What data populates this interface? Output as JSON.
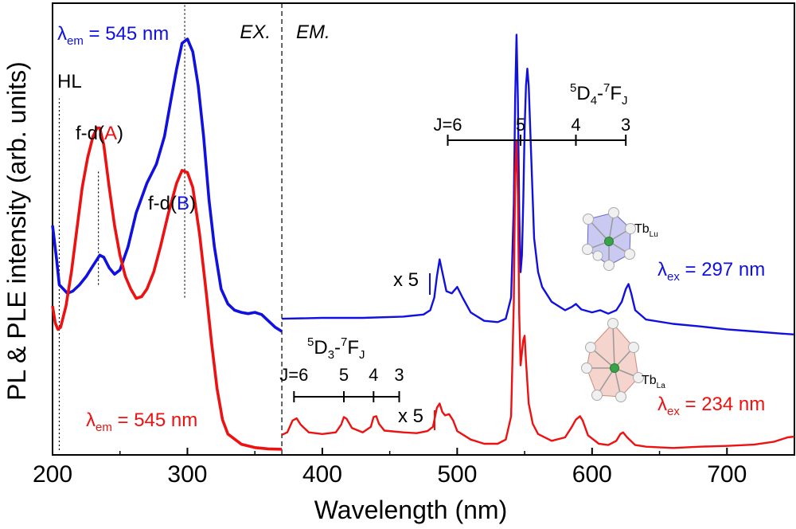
{
  "chart_data": {
    "type": "line",
    "title": "",
    "xlabel": "Wavelength (nm)",
    "ylabel": "PL & PLE intensity (arb. units)",
    "xlim": [
      200,
      750
    ],
    "ylim": [
      0,
      10
    ],
    "grid": false,
    "legend": "none",
    "x_ticks": [
      200,
      300,
      400,
      500,
      600,
      700
    ],
    "x_tick_labels": [
      "200",
      "300",
      "400",
      "500",
      "600",
      "700"
    ],
    "divider_x": 370,
    "colors": {
      "blue": "#1010e0",
      "red": "#ee1111",
      "tb_lu_poly": "#8888e0",
      "tb_la_poly": "#e8a090",
      "center_atom": "#3aa34a",
      "vertex_atom": "#f0f0f0"
    },
    "series": [
      {
        "color": "#1010e0",
        "segments": [
          [
            [
              200,
              5.3
            ],
            [
              203,
              4.5
            ],
            [
              205,
              3.9
            ],
            [
              208,
              3.8
            ],
            [
              211,
              3.7
            ],
            [
              215,
              3.75
            ],
            [
              220,
              3.9
            ],
            [
              225,
              4.1
            ],
            [
              229,
              4.3
            ],
            [
              232,
              4.45
            ],
            [
              235,
              4.6
            ],
            [
              238,
              4.55
            ],
            [
              242,
              4.3
            ],
            [
              246,
              4.15
            ],
            [
              250,
              4.25
            ],
            [
              256,
              4.8
            ],
            [
              262,
              5.6
            ],
            [
              270,
              6.3
            ],
            [
              277,
              6.75
            ],
            [
              283,
              7.4
            ],
            [
              288,
              8.3
            ],
            [
              292,
              9.0
            ],
            [
              296,
              9.6
            ],
            [
              300,
              9.7
            ],
            [
              304,
              9.4
            ],
            [
              308,
              8.6
            ],
            [
              312,
              7.4
            ],
            [
              316,
              5.9
            ],
            [
              320,
              4.8
            ],
            [
              325,
              3.8
            ],
            [
              330,
              3.45
            ],
            [
              335,
              3.3
            ],
            [
              340,
              3.25
            ],
            [
              345,
              3.22
            ],
            [
              350,
              3.25
            ],
            [
              355,
              3.2
            ],
            [
              360,
              3.05
            ],
            [
              365,
              2.9
            ],
            [
              370,
              2.8
            ]
          ],
          [
            [
              370,
              3.1
            ],
            [
              400,
              3.12
            ],
            [
              430,
              3.12
            ],
            [
              460,
              3.15
            ],
            [
              475,
              3.2
            ],
            [
              480,
              3.3
            ],
            [
              483,
              3.6
            ],
            [
              485,
              4.1
            ],
            [
              487,
              4.5
            ],
            [
              489,
              4.2
            ],
            [
              492,
              3.75
            ],
            [
              496,
              3.7
            ],
            [
              500,
              3.85
            ],
            [
              504,
              3.6
            ],
            [
              510,
              3.25
            ],
            [
              520,
              3.05
            ],
            [
              530,
              3.02
            ],
            [
              536,
              3.1
            ],
            [
              540,
              3.6
            ],
            [
              542,
              5.8
            ],
            [
              543,
              8.3
            ],
            [
              544,
              9.8
            ],
            [
              545,
              8.3
            ],
            [
              546,
              5.6
            ],
            [
              547,
              4.2
            ],
            [
              548,
              4.6
            ],
            [
              549,
              5.9
            ],
            [
              550,
              7.6
            ],
            [
              551,
              8.6
            ],
            [
              552,
              9.0
            ],
            [
              553,
              8.6
            ],
            [
              555,
              6.8
            ],
            [
              557,
              5.0
            ],
            [
              560,
              4.2
            ],
            [
              563,
              3.85
            ],
            [
              570,
              3.5
            ],
            [
              580,
              3.3
            ],
            [
              585,
              3.38
            ],
            [
              588,
              3.45
            ],
            [
              592,
              3.32
            ],
            [
              600,
              3.25
            ],
            [
              606,
              3.3
            ],
            [
              612,
              3.22
            ],
            [
              618,
              3.3
            ],
            [
              622,
              3.5
            ],
            [
              625,
              3.8
            ],
            [
              627,
              3.92
            ],
            [
              629,
              3.7
            ],
            [
              632,
              3.3
            ],
            [
              640,
              3.08
            ],
            [
              660,
              2.98
            ],
            [
              680,
              2.92
            ],
            [
              700,
              2.85
            ],
            [
              720,
              2.8
            ],
            [
              740,
              2.75
            ],
            [
              750,
              2.73
            ]
          ]
        ]
      },
      {
        "color": "#ee1111",
        "segments": [
          [
            [
              200,
              3.4
            ],
            [
              202,
              3.0
            ],
            [
              204,
              2.85
            ],
            [
              206,
              2.9
            ],
            [
              210,
              3.4
            ],
            [
              214,
              4.2
            ],
            [
              218,
              5.2
            ],
            [
              222,
              6.2
            ],
            [
              226,
              6.9
            ],
            [
              230,
              7.4
            ],
            [
              233,
              7.6
            ],
            [
              235,
              7.6
            ],
            [
              238,
              7.2
            ],
            [
              242,
              6.2
            ],
            [
              246,
              5.3
            ],
            [
              250,
              4.6
            ],
            [
              254,
              4.1
            ],
            [
              258,
              3.8
            ],
            [
              262,
              3.58
            ],
            [
              266,
              3.62
            ],
            [
              270,
              3.8
            ],
            [
              275,
              4.2
            ],
            [
              280,
              4.8
            ],
            [
              286,
              5.6
            ],
            [
              292,
              6.3
            ],
            [
              296,
              6.6
            ],
            [
              300,
              6.55
            ],
            [
              304,
              6.2
            ],
            [
              309,
              5.1
            ],
            [
              314,
              3.7
            ],
            [
              318,
              2.5
            ],
            [
              322,
              1.45
            ],
            [
              326,
              0.72
            ],
            [
              330,
              0.38
            ],
            [
              340,
              0.14
            ],
            [
              350,
              0.06
            ],
            [
              360,
              0.03
            ],
            [
              370,
              0.02
            ]
          ],
          [
            [
              370,
              0.36
            ],
            [
              374,
              0.42
            ],
            [
              378,
              0.7
            ],
            [
              381,
              0.75
            ],
            [
              384,
              0.6
            ],
            [
              390,
              0.42
            ],
            [
              400,
              0.38
            ],
            [
              410,
              0.42
            ],
            [
              414,
              0.6
            ],
            [
              416,
              0.78
            ],
            [
              418,
              0.74
            ],
            [
              422,
              0.52
            ],
            [
              430,
              0.42
            ],
            [
              436,
              0.55
            ],
            [
              438,
              0.78
            ],
            [
              440,
              0.8
            ],
            [
              442,
              0.62
            ],
            [
              446,
              0.46
            ],
            [
              460,
              0.42
            ],
            [
              470,
              0.4
            ],
            [
              478,
              0.45
            ],
            [
              482,
              0.55
            ],
            [
              485,
              1.0
            ],
            [
              487,
              1.1
            ],
            [
              489,
              0.9
            ],
            [
              491,
              0.82
            ],
            [
              494,
              0.85
            ],
            [
              497,
              0.7
            ],
            [
              500,
              0.45
            ],
            [
              510,
              0.25
            ],
            [
              520,
              0.15
            ],
            [
              530,
              0.15
            ],
            [
              536,
              0.25
            ],
            [
              540,
              0.8
            ],
            [
              542,
              3.5
            ],
            [
              543,
              6.5
            ],
            [
              544,
              7.3
            ],
            [
              545,
              6.0
            ],
            [
              546,
              3.2
            ],
            [
              547,
              2.0
            ],
            [
              548,
              2.3
            ],
            [
              549,
              2.6
            ],
            [
              550,
              2.7
            ],
            [
              551,
              2.1
            ],
            [
              553,
              1.1
            ],
            [
              556,
              0.62
            ],
            [
              560,
              0.38
            ],
            [
              570,
              0.22
            ],
            [
              580,
              0.3
            ],
            [
              585,
              0.55
            ],
            [
              588,
              0.72
            ],
            [
              591,
              0.8
            ],
            [
              593,
              0.7
            ],
            [
              597,
              0.35
            ],
            [
              605,
              0.15
            ],
            [
              612,
              0.12
            ],
            [
              618,
              0.22
            ],
            [
              621,
              0.38
            ],
            [
              623,
              0.42
            ],
            [
              626,
              0.3
            ],
            [
              632,
              0.12
            ],
            [
              640,
              0.08
            ],
            [
              660,
              0.05
            ],
            [
              680,
              0.08
            ],
            [
              700,
              0.1
            ],
            [
              720,
              0.13
            ],
            [
              735,
              0.2
            ],
            [
              745,
              0.3
            ],
            [
              750,
              0.32
            ]
          ]
        ]
      }
    ],
    "dotted_markers": [
      {
        "x": 205,
        "y_from": 0,
        "y_to": 8.3
      },
      {
        "x": 234,
        "y_from": 3.9,
        "y_to": 6.6
      },
      {
        "x": 298,
        "y_from": 3.6,
        "y_to": 10.5
      }
    ],
    "annotations": {
      "lambda_em_blue": {
        "pre": "λ",
        "sub": "em",
        "post": " = 545 nm"
      },
      "lambda_em_red": {
        "pre": "λ",
        "sub": "em",
        "post": " = 545 nm"
      },
      "lambda_ex_blue": {
        "pre": "λ",
        "sub": "ex",
        "post": " = 297 nm"
      },
      "lambda_ex_red": {
        "pre": "λ",
        "sub": "ex",
        "post": " = 234 nm"
      },
      "ex": "EX.",
      "em": "EM.",
      "hl": "HL",
      "fd_a": {
        "pre": "f-d(",
        "letter": "A",
        "post": ")"
      },
      "fd_b": {
        "pre": "f-d(",
        "letter": "B",
        "post": ")"
      },
      "x5_blue": "x 5",
      "x5_red": "x 5",
      "d4": {
        "a": "5",
        "b": "D",
        "c": "4",
        "d": "-",
        "e": "7",
        "f": "F",
        "g": "J"
      },
      "d3": {
        "a": "5",
        "b": "D",
        "c": "3",
        "d": "-",
        "e": "7",
        "f": "F",
        "g": "J"
      },
      "tb_lu": {
        "main": "Tb",
        "sub": "Lu"
      },
      "tb_la": {
        "main": "Tb",
        "sub": "La"
      }
    },
    "d4_levels": {
      "x": [
        493,
        547,
        588,
        625
      ],
      "labels": [
        "J=6",
        "5",
        "4",
        "3"
      ]
    },
    "d3_levels": {
      "x": [
        379,
        416,
        438,
        457
      ],
      "labels": [
        "J=6",
        "5",
        "4",
        "3"
      ]
    }
  }
}
